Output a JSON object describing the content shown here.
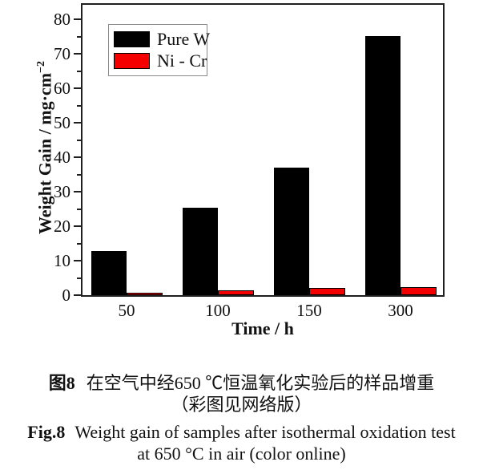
{
  "chart_data": {
    "type": "bar",
    "categories": [
      "50",
      "100",
      "150",
      "300"
    ],
    "series": [
      {
        "name": "Pure W",
        "color": "#000000",
        "values": [
          12.7,
          25.3,
          37.0,
          75.0
        ]
      },
      {
        "name": "Ni - Cr",
        "color": "#f50000",
        "values": [
          0.7,
          1.3,
          2.0,
          2.3
        ]
      }
    ],
    "title": "",
    "xlabel": "Time / h",
    "ylabel": "Weight Gain / mg·cm⁻²",
    "ylabel_base": "Weight Gain / mg·cm",
    "ylabel_sup": "−2",
    "ylim": [
      0,
      85
    ],
    "yticks": [
      0,
      10,
      20,
      30,
      40,
      50,
      60,
      70,
      80
    ],
    "ytick_minor_step": 5,
    "grid": false,
    "legend_position": "top-left-inside",
    "bar_outline_color": "#000000",
    "frame_color": "#1f1f1f"
  },
  "caption": {
    "zh_label": "图8",
    "zh_text": "在空气中经650 ℃恒温氧化实验后的样品增重",
    "zh_line2": "（彩图见网络版）",
    "en_label": "Fig.8",
    "en_text": "Weight gain of samples after isothermal oxidation test",
    "en_line2": "at 650 °C in air (color online)"
  }
}
